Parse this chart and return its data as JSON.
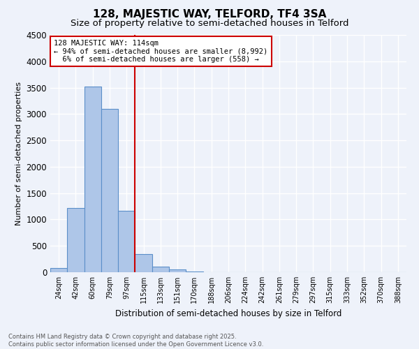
{
  "title": "128, MAJESTIC WAY, TELFORD, TF4 3SA",
  "subtitle": "Size of property relative to semi-detached houses in Telford",
  "xlabel": "Distribution of semi-detached houses by size in Telford",
  "ylabel": "Number of semi-detached properties",
  "categories": [
    "24sqm",
    "42sqm",
    "60sqm",
    "79sqm",
    "97sqm",
    "115sqm",
    "133sqm",
    "151sqm",
    "170sqm",
    "188sqm",
    "206sqm",
    "224sqm",
    "242sqm",
    "261sqm",
    "279sqm",
    "297sqm",
    "315sqm",
    "333sqm",
    "352sqm",
    "370sqm",
    "388sqm"
  ],
  "values": [
    75,
    1220,
    3520,
    3100,
    1160,
    340,
    100,
    50,
    15,
    5,
    2,
    0,
    0,
    0,
    0,
    0,
    0,
    0,
    0,
    0,
    0
  ],
  "bar_color": "#aec6e8",
  "bar_edge_color": "#5b8fc9",
  "property_line_index": 5,
  "property_line_color": "#cc0000",
  "ylim": [
    0,
    4500
  ],
  "yticks": [
    0,
    500,
    1000,
    1500,
    2000,
    2500,
    3000,
    3500,
    4000,
    4500
  ],
  "annotation_title": "128 MAJESTIC WAY: 114sqm",
  "annotation_line1": "← 94% of semi-detached houses are smaller (8,992)",
  "annotation_line2": "  6% of semi-detached houses are larger (558) →",
  "annotation_box_color": "#ffffff",
  "annotation_box_edge": "#cc0000",
  "footer_line1": "Contains HM Land Registry data © Crown copyright and database right 2025.",
  "footer_line2": "Contains public sector information licensed under the Open Government Licence v3.0.",
  "bg_color": "#eef2fa",
  "grid_color": "#ffffff",
  "title_fontsize": 11,
  "subtitle_fontsize": 9.5
}
